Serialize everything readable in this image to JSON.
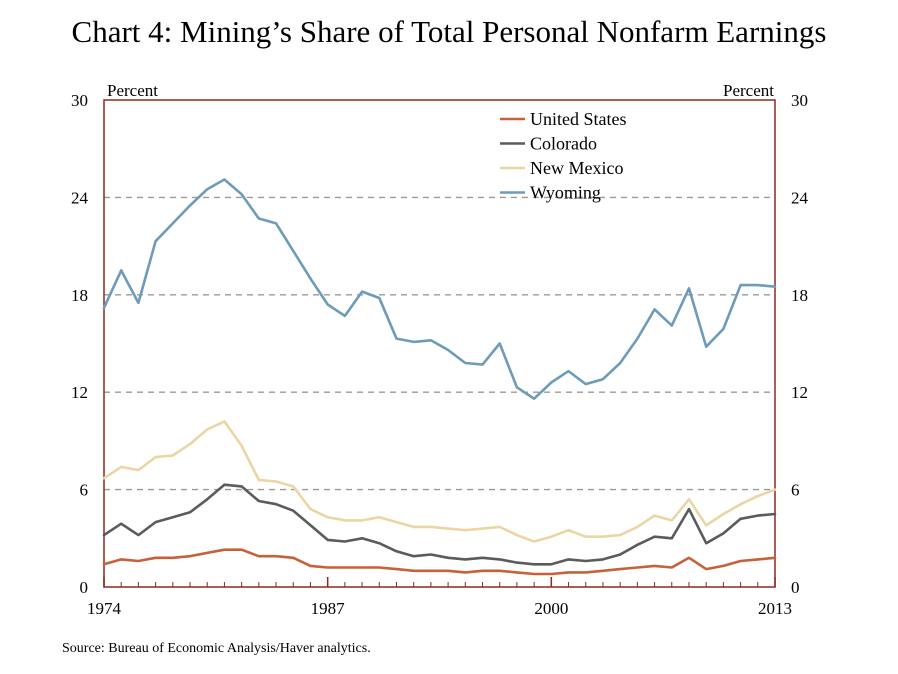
{
  "title": "Chart 4: Mining’s Share of Total Personal Nonfarm Earnings",
  "source": "Source: Bureau of Economic Analysis/Haver analytics.",
  "chart_data": {
    "type": "line",
    "title": "Chart 4: Mining’s Share of Total Personal Nonfarm Earnings",
    "ylabel_left": "Percent",
    "ylabel_right": "Percent",
    "xlim": [
      1974,
      2013
    ],
    "ylim": [
      0,
      30
    ],
    "x_ticks": [
      1974,
      1987,
      2000,
      2013
    ],
    "x_tick_labels": [
      "1974",
      "1987",
      "2000",
      "2013"
    ],
    "y_ticks": [
      0,
      6,
      12,
      18,
      24,
      30
    ],
    "y_tick_labels": [
      "0",
      "6",
      "12",
      "18",
      "24",
      "30"
    ],
    "grid": "horizontal dashed",
    "legend_position": "top-center",
    "frame_color": "#8b2a20",
    "x": [
      1974,
      1975,
      1976,
      1977,
      1978,
      1979,
      1980,
      1981,
      1982,
      1983,
      1984,
      1985,
      1986,
      1987,
      1988,
      1989,
      1990,
      1991,
      1992,
      1993,
      1994,
      1995,
      1996,
      1997,
      1998,
      1999,
      2000,
      2001,
      2002,
      2003,
      2004,
      2005,
      2006,
      2007,
      2008,
      2009,
      2010,
      2011,
      2012,
      2013
    ],
    "series": [
      {
        "name": "United States",
        "color": "#c8603a",
        "values": [
          1.4,
          1.7,
          1.6,
          1.8,
          1.8,
          1.9,
          2.1,
          2.3,
          2.3,
          1.9,
          1.9,
          1.8,
          1.3,
          1.2,
          1.2,
          1.2,
          1.2,
          1.1,
          1.0,
          1.0,
          1.0,
          0.9,
          1.0,
          1.0,
          0.9,
          0.8,
          0.8,
          0.9,
          0.9,
          1.0,
          1.1,
          1.2,
          1.3,
          1.2,
          1.8,
          1.1,
          1.3,
          1.6,
          1.7,
          1.8
        ]
      },
      {
        "name": "Colorado",
        "color": "#5b5b5b",
        "values": [
          3.2,
          3.9,
          3.2,
          4.0,
          4.3,
          4.6,
          5.4,
          6.3,
          6.2,
          5.3,
          5.1,
          4.7,
          3.8,
          2.9,
          2.8,
          3.0,
          2.7,
          2.2,
          1.9,
          2.0,
          1.8,
          1.7,
          1.8,
          1.7,
          1.5,
          1.4,
          1.4,
          1.7,
          1.6,
          1.7,
          2.0,
          2.6,
          3.1,
          3.0,
          4.8,
          2.7,
          3.3,
          4.2,
          4.4,
          4.5
        ]
      },
      {
        "name": "New Mexico",
        "color": "#ecd5a4",
        "values": [
          6.7,
          7.4,
          7.2,
          8.0,
          8.1,
          8.8,
          9.7,
          10.2,
          8.7,
          6.6,
          6.5,
          6.2,
          4.8,
          4.3,
          4.1,
          4.1,
          4.3,
          4.0,
          3.7,
          3.7,
          3.6,
          3.5,
          3.6,
          3.7,
          3.2,
          2.8,
          3.1,
          3.5,
          3.1,
          3.1,
          3.2,
          3.7,
          4.4,
          4.1,
          5.4,
          3.8,
          4.5,
          5.1,
          5.6,
          6.0
        ]
      },
      {
        "name": "Wyoming",
        "color": "#6e9bb8",
        "values": [
          17.2,
          19.5,
          17.5,
          21.3,
          22.4,
          23.5,
          24.5,
          25.1,
          24.2,
          22.7,
          22.4,
          20.7,
          19.0,
          17.4,
          16.7,
          18.2,
          17.8,
          15.3,
          15.1,
          15.2,
          14.6,
          13.8,
          13.7,
          15.0,
          12.3,
          11.6,
          12.6,
          13.3,
          12.5,
          12.8,
          13.8,
          15.3,
          17.1,
          16.1,
          18.4,
          14.8,
          15.9,
          18.6,
          18.6,
          18.5
        ]
      }
    ]
  }
}
